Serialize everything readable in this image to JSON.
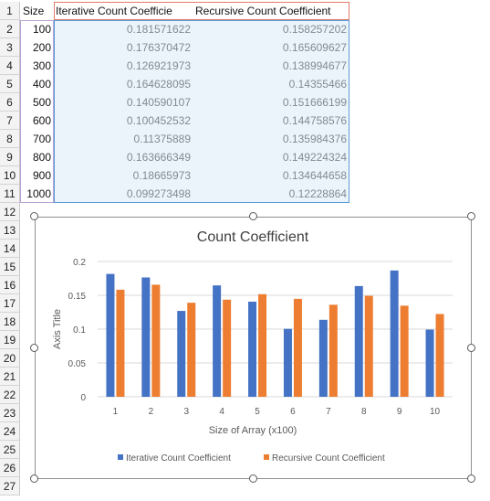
{
  "sheet": {
    "row_numbers": [
      "1",
      "2",
      "3",
      "4",
      "5",
      "6",
      "7",
      "8",
      "9",
      "10",
      "11",
      "12",
      "13",
      "14",
      "15",
      "16",
      "17",
      "18",
      "19",
      "20",
      "21",
      "22",
      "23",
      "24",
      "25",
      "26",
      "27"
    ],
    "headers": [
      "Size",
      "Iterative Count Coefficie",
      "Recursive Count Coefficient"
    ],
    "rows": [
      [
        "100",
        "0.181571622",
        "0.158257202"
      ],
      [
        "200",
        "0.176370472",
        "0.165609627"
      ],
      [
        "300",
        "0.126921973",
        "0.138994677"
      ],
      [
        "400",
        "0.164628095",
        "0.14355466"
      ],
      [
        "500",
        "0.140590107",
        "0.151666199"
      ],
      [
        "600",
        "0.100452532",
        "0.144758576"
      ],
      [
        "700",
        "0.11375889",
        "0.135984376"
      ],
      [
        "800",
        "0.163666349",
        "0.149224324"
      ],
      [
        "900",
        "0.18665973",
        "0.134644658"
      ],
      [
        "1000",
        "0.099273498",
        "0.12228864"
      ]
    ]
  },
  "colors": {
    "iterative": "#4472c4",
    "recursive": "#ed7d31",
    "selection": "#5b9bd5",
    "header_select": "#e07c6c"
  },
  "chart_data": {
    "type": "bar",
    "title": "Count Coefficient",
    "xlabel": "Size of Array (x100)",
    "ylabel": "Axis Title",
    "categories": [
      "1",
      "2",
      "3",
      "4",
      "5",
      "6",
      "7",
      "8",
      "9",
      "10"
    ],
    "ylim": [
      0,
      0.2
    ],
    "yticks": [
      "0",
      "0.05",
      "0.1",
      "0.15",
      "0.2"
    ],
    "grid": true,
    "legend": "bottom",
    "series": [
      {
        "name": "Iterative Count Coefficient",
        "values": [
          0.181571622,
          0.176370472,
          0.126921973,
          0.164628095,
          0.140590107,
          0.100452532,
          0.11375889,
          0.163666349,
          0.18665973,
          0.099273498
        ]
      },
      {
        "name": "Recursive Count Coefficient",
        "values": [
          0.158257202,
          0.165609627,
          0.138994677,
          0.14355466,
          0.151666199,
          0.144758576,
          0.135984376,
          0.149224324,
          0.134644658,
          0.12228864
        ]
      }
    ]
  }
}
